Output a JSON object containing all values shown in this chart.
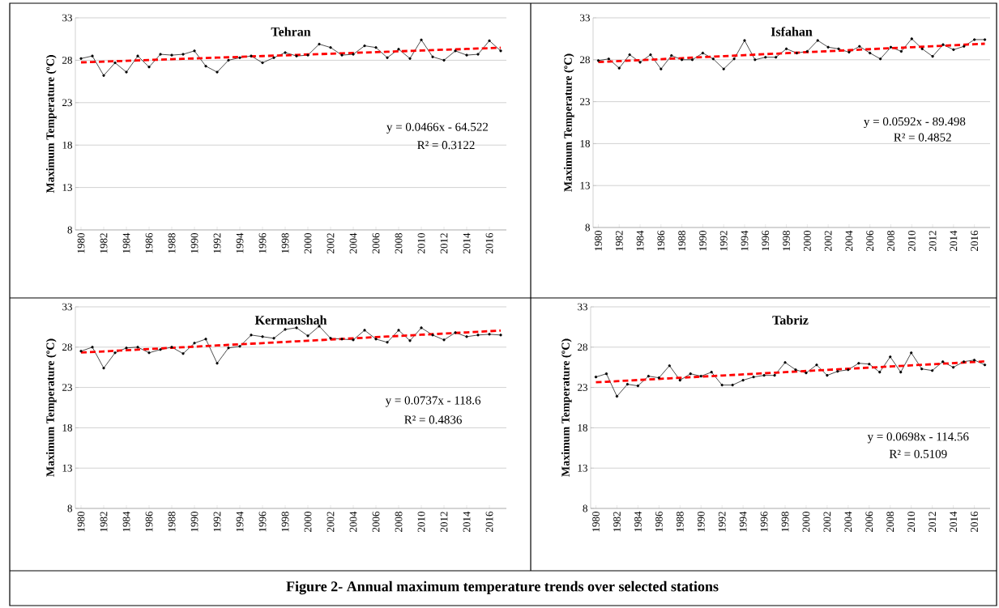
{
  "chart_data": [
    {
      "type": "line",
      "title": "Tehran",
      "ylabel": "Maximum Temperature (ºC)",
      "annotations": [
        "y = 0.0466x - 64.522",
        "R² = 0.3122"
      ],
      "x": [
        1980,
        1981,
        1982,
        1983,
        1984,
        1985,
        1986,
        1987,
        1988,
        1989,
        1990,
        1991,
        1992,
        1993,
        1994,
        1995,
        1996,
        1997,
        1998,
        1999,
        2000,
        2001,
        2002,
        2003,
        2004,
        2005,
        2006,
        2007,
        2008,
        2009,
        2010,
        2011,
        2012,
        2013,
        2014,
        2015,
        2016,
        2017
      ],
      "xlim": [
        1979.5,
        2017.5
      ],
      "xticks": [
        1980,
        1982,
        1984,
        1986,
        1988,
        1990,
        1992,
        1994,
        1996,
        1998,
        2000,
        2002,
        2004,
        2006,
        2008,
        2010,
        2012,
        2014,
        2016
      ],
      "ylim": [
        8,
        33
      ],
      "yticks": [
        8,
        13,
        18,
        23,
        28,
        33
      ],
      "grid": "y",
      "series": [
        {
          "color": "#000000",
          "marker": "circle",
          "line_style": "solid",
          "values": [
            28.2,
            28.5,
            26.2,
            27.7,
            26.6,
            28.5,
            27.2,
            28.7,
            28.6,
            28.7,
            29.1,
            27.3,
            26.6,
            28.0,
            28.3,
            28.5,
            27.7,
            28.3,
            28.9,
            28.5,
            28.6,
            29.9,
            29.5,
            28.6,
            28.7,
            29.7,
            29.5,
            28.3,
            29.3,
            28.2,
            30.4,
            28.4,
            28.0,
            29.1,
            28.6,
            28.7,
            30.3,
            29.1
          ]
        },
        {
          "type": "line",
          "color": "#ff0000",
          "marker": "none",
          "line_style": "dashed",
          "values": [
            27.75,
            27.79,
            27.84,
            27.89,
            27.93,
            27.98,
            28.03,
            28.07,
            28.12,
            28.17,
            28.21,
            28.26,
            28.31,
            28.35,
            28.4,
            28.45,
            28.49,
            28.54,
            28.58,
            28.63,
            28.68,
            28.72,
            28.77,
            28.82,
            28.86,
            28.91,
            28.96,
            29.0,
            29.05,
            29.1,
            29.14,
            29.19,
            29.24,
            29.28,
            29.33,
            29.38,
            29.42,
            29.47
          ]
        }
      ]
    },
    {
      "type": "line",
      "title": "Isfahan",
      "ylabel": "Maximum Temperature (ºC)",
      "annotations": [
        "y = 0.0592x - 89.498",
        "R² = 0.4852"
      ],
      "x": [
        1980,
        1981,
        1982,
        1983,
        1984,
        1985,
        1986,
        1987,
        1988,
        1989,
        1990,
        1991,
        1992,
        1993,
        1994,
        1995,
        1996,
        1997,
        1998,
        1999,
        2000,
        2001,
        2002,
        2003,
        2004,
        2005,
        2006,
        2007,
        2008,
        2009,
        2010,
        2011,
        2012,
        2013,
        2014,
        2015,
        2016,
        2017
      ],
      "xlim": [
        1979.5,
        2017.5
      ],
      "xticks": [
        1980,
        1982,
        1984,
        1986,
        1988,
        1990,
        1992,
        1994,
        1996,
        1998,
        2000,
        2002,
        2004,
        2006,
        2008,
        2010,
        2012,
        2014,
        2016
      ],
      "ylim": [
        8,
        33
      ],
      "yticks": [
        8,
        13,
        18,
        23,
        28,
        33
      ],
      "grid": "y",
      "series": [
        {
          "color": "#000000",
          "marker": "circle",
          "line_style": "solid",
          "values": [
            27.9,
            28.1,
            27.0,
            28.6,
            27.7,
            28.6,
            26.9,
            28.5,
            28.0,
            28.0,
            28.8,
            28.1,
            26.9,
            28.1,
            30.3,
            28.0,
            28.3,
            28.3,
            29.3,
            28.8,
            29.0,
            30.3,
            29.5,
            29.3,
            28.9,
            29.6,
            28.8,
            28.1,
            29.5,
            29.0,
            30.5,
            29.3,
            28.4,
            29.8,
            29.2,
            29.6,
            30.4,
            30.4
          ]
        },
        {
          "type": "line",
          "color": "#ff0000",
          "marker": "none",
          "line_style": "dashed",
          "values": [
            27.72,
            27.78,
            27.84,
            27.9,
            27.95,
            28.01,
            28.07,
            28.13,
            28.19,
            28.25,
            28.31,
            28.37,
            28.43,
            28.49,
            28.55,
            28.61,
            28.67,
            28.72,
            28.78,
            28.84,
            28.9,
            28.96,
            29.02,
            29.08,
            29.14,
            29.2,
            29.26,
            29.32,
            29.38,
            29.43,
            29.49,
            29.55,
            29.61,
            29.67,
            29.73,
            29.79,
            29.85,
            29.91
          ]
        }
      ]
    },
    {
      "type": "line",
      "title": "Kermanshah",
      "ylabel": "Maximum Temperature (ºC)",
      "annotations": [
        "y = 0.0737x - 118.6",
        "R² = 0.4836"
      ],
      "x": [
        1980,
        1981,
        1982,
        1983,
        1984,
        1985,
        1986,
        1987,
        1988,
        1989,
        1990,
        1991,
        1992,
        1993,
        1994,
        1995,
        1996,
        1997,
        1998,
        1999,
        2000,
        2001,
        2002,
        2003,
        2004,
        2005,
        2006,
        2007,
        2008,
        2009,
        2010,
        2011,
        2012,
        2013,
        2014,
        2015,
        2016,
        2017
      ],
      "xlim": [
        1979.5,
        2017.5
      ],
      "xticks": [
        1980,
        1982,
        1984,
        1986,
        1988,
        1990,
        1992,
        1994,
        1996,
        1998,
        2000,
        2002,
        2004,
        2006,
        2008,
        2010,
        2012,
        2014,
        2016
      ],
      "ylim": [
        8,
        33
      ],
      "yticks": [
        8,
        13,
        18,
        23,
        28,
        33
      ],
      "grid": "y",
      "series": [
        {
          "color": "#000000",
          "marker": "circle",
          "line_style": "solid",
          "values": [
            27.5,
            28.0,
            25.4,
            27.3,
            27.9,
            28.0,
            27.3,
            27.7,
            28.0,
            27.2,
            28.5,
            29.0,
            26.0,
            27.9,
            28.1,
            29.5,
            29.3,
            29.1,
            30.2,
            30.4,
            29.4,
            30.6,
            29.1,
            29.0,
            28.9,
            30.1,
            29.0,
            28.6,
            30.1,
            28.8,
            30.4,
            29.5,
            28.9,
            29.8,
            29.3,
            29.5,
            29.6,
            29.5
          ]
        },
        {
          "type": "line",
          "color": "#ff0000",
          "marker": "none",
          "line_style": "dashed",
          "values": [
            27.33,
            27.4,
            27.47,
            27.55,
            27.62,
            27.69,
            27.77,
            27.84,
            27.92,
            27.99,
            28.06,
            28.14,
            28.21,
            28.28,
            28.36,
            28.43,
            28.5,
            28.58,
            28.65,
            28.73,
            28.8,
            28.87,
            28.95,
            29.02,
            29.09,
            29.17,
            29.24,
            29.32,
            29.39,
            29.46,
            29.54,
            29.61,
            29.68,
            29.76,
            29.83,
            29.91,
            29.98,
            30.05
          ]
        }
      ]
    },
    {
      "type": "line",
      "title": "Tabriz",
      "ylabel": "Maximum Temperature (ºC)",
      "annotations": [
        "y = 0.0698x - 114.56",
        "R² = 0.5109",
        "Figure 2- Annual maximum temperature trends over selected stations"
      ],
      "x": [
        1980,
        1981,
        1982,
        1983,
        1984,
        1985,
        1986,
        1987,
        1988,
        1989,
        1990,
        1991,
        1992,
        1993,
        1994,
        1995,
        1996,
        1997,
        1998,
        1999,
        2000,
        2001,
        2002,
        2003,
        2004,
        2005,
        2006,
        2007,
        2008,
        2009,
        2010,
        2011,
        2012,
        2013,
        2014,
        2015,
        2016,
        2017
      ],
      "xlim": [
        1979.5,
        2017.5
      ],
      "xticks": [
        1980,
        1982,
        1984,
        1986,
        1988,
        1990,
        1992,
        1994,
        1996,
        1998,
        2000,
        2002,
        2004,
        2006,
        2008,
        2010,
        2012,
        2014,
        2016
      ],
      "ylim": [
        8,
        33
      ],
      "yticks": [
        8,
        13,
        18,
        23,
        28,
        33
      ],
      "grid": "y",
      "series": [
        {
          "color": "#000000",
          "marker": "circle",
          "line_style": "solid",
          "values": [
            24.3,
            24.7,
            21.9,
            23.4,
            23.2,
            24.4,
            24.2,
            25.7,
            23.9,
            24.7,
            24.4,
            24.9,
            23.3,
            23.3,
            23.9,
            24.3,
            24.5,
            24.5,
            26.1,
            25.2,
            24.8,
            25.8,
            24.5,
            25.0,
            25.2,
            26.0,
            25.9,
            24.9,
            26.8,
            24.9,
            27.3,
            25.3,
            25.1,
            26.2,
            25.5,
            26.2,
            26.4,
            25.8
          ]
        },
        {
          "type": "line",
          "color": "#ff0000",
          "marker": "none",
          "line_style": "dashed",
          "values": [
            23.64,
            23.71,
            23.78,
            23.85,
            23.92,
            23.99,
            24.06,
            24.13,
            24.2,
            24.27,
            24.34,
            24.41,
            24.48,
            24.55,
            24.62,
            24.69,
            24.76,
            24.83,
            24.9,
            24.97,
            25.04,
            25.11,
            25.18,
            25.25,
            25.32,
            25.39,
            25.46,
            25.53,
            25.6,
            25.67,
            25.74,
            25.81,
            25.88,
            25.95,
            26.02,
            26.09,
            26.16,
            26.23
          ]
        }
      ]
    }
  ]
}
